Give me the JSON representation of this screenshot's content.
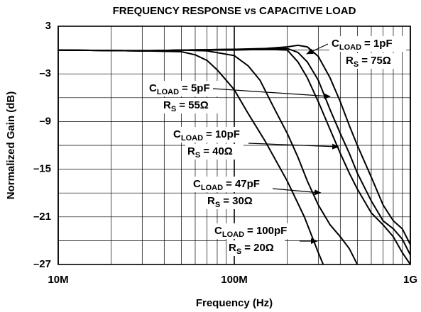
{
  "chart_data": {
    "type": "line",
    "title": "FREQUENCY RESPONSE vs CAPACITIVE LOAD",
    "x_label": "Frequency (Hz)",
    "y_label": "Normalized Gain (dB)",
    "log_x": true,
    "grid": true,
    "xlim": [
      10000000,
      1000000000
    ],
    "xticks": [
      {
        "value": 10000000,
        "label": "10M"
      },
      {
        "value": 100000000,
        "label": "100M"
      },
      {
        "value": 1000000000,
        "label": "1G"
      }
    ],
    "ylim": [
      -27,
      3
    ],
    "yticks": [
      3,
      {
        "value": -3,
        "label": "–3"
      },
      {
        "value": -9,
        "label": "–9"
      },
      {
        "value": -15,
        "label": "–15"
      },
      {
        "value": -21,
        "label": "–21"
      },
      {
        "value": -27,
        "label": "–27"
      }
    ],
    "series": [
      {
        "color": "#000000",
        "x": [
          10000000,
          30000000,
          50000000,
          100000000,
          150000000,
          200000000,
          230000000,
          260000000,
          300000000,
          350000000,
          400000000,
          450000000,
          500000000,
          600000000,
          700000000,
          800000000,
          900000000,
          1000000000
        ],
        "values": [
          0,
          -0.1,
          0,
          0.1,
          0.2,
          0.4,
          0.6,
          0.4,
          -0.8,
          -3.5,
          -6.5,
          -9.5,
          -12,
          -16,
          -19.5,
          -21.5,
          -22.5,
          -24.5
        ]
      },
      {
        "color": "#000000",
        "x": [
          10000000,
          30000000,
          50000000,
          100000000,
          150000000,
          200000000,
          230000000,
          260000000,
          300000000,
          350000000,
          400000000,
          450000000,
          500000000,
          600000000,
          700000000,
          800000000,
          900000000,
          1000000000
        ],
        "values": [
          0,
          -0.1,
          0,
          0.1,
          0.1,
          0.2,
          -0.3,
          -1.5,
          -3.8,
          -7.5,
          -10.5,
          -13,
          -15.5,
          -19,
          -21.5,
          -22.5,
          -23.8,
          -25.8
        ]
      },
      {
        "color": "#000000",
        "x": [
          10000000,
          30000000,
          50000000,
          100000000,
          150000000,
          200000000,
          230000000,
          260000000,
          300000000,
          350000000,
          400000000,
          450000000,
          500000000,
          600000000,
          700000000,
          800000000,
          900000000,
          1000000000
        ],
        "values": [
          0,
          -0.1,
          0,
          0,
          0.1,
          0,
          -1.5,
          -3.5,
          -6.5,
          -10,
          -13,
          -15.5,
          -17.5,
          -20.5,
          -22,
          -23.5,
          -25.5,
          -27
        ]
      },
      {
        "color": "#000000",
        "x": [
          10000000,
          30000000,
          50000000,
          70000000,
          100000000,
          120000000,
          140000000,
          170000000,
          200000000,
          230000000,
          260000000,
          300000000,
          350000000,
          400000000,
          450000000,
          500000000
        ],
        "values": [
          0,
          -0.1,
          0,
          -0.1,
          -0.7,
          -2,
          -3.8,
          -7.5,
          -10.5,
          -13.5,
          -16.5,
          -19.5,
          -22,
          -23.5,
          -25,
          -27
        ]
      },
      {
        "color": "#000000",
        "x": [
          10000000,
          30000000,
          50000000,
          60000000,
          70000000,
          80000000,
          90000000,
          100000000,
          120000000,
          150000000,
          200000000,
          250000000,
          300000000,
          320000000
        ],
        "values": [
          0,
          -0.1,
          -0.2,
          -0.6,
          -1.3,
          -2.5,
          -3.8,
          -5,
          -8,
          -11.5,
          -16.5,
          -21,
          -25.5,
          -27
        ]
      }
    ],
    "annotations": [
      {
        "line1": [
          "C",
          "LOAD",
          "= 1pF"
        ],
        "line2": [
          "R",
          "S",
          "= 75Ω"
        ]
      },
      {
        "line1": [
          "C",
          "LOAD",
          "= 5pF"
        ],
        "line2": [
          "R",
          "S",
          "= 55Ω"
        ]
      },
      {
        "line1": [
          "C",
          "LOAD",
          "= 10pF"
        ],
        "line2": [
          "R",
          "S",
          "= 40Ω"
        ]
      },
      {
        "line1": [
          "C",
          "LOAD",
          "= 47pF"
        ],
        "line2": [
          "R",
          "S",
          "= 30Ω"
        ]
      },
      {
        "line1": [
          "C",
          "LOAD",
          "= 100pF"
        ],
        "line2": [
          "R",
          "S",
          "= 20Ω"
        ]
      }
    ]
  }
}
